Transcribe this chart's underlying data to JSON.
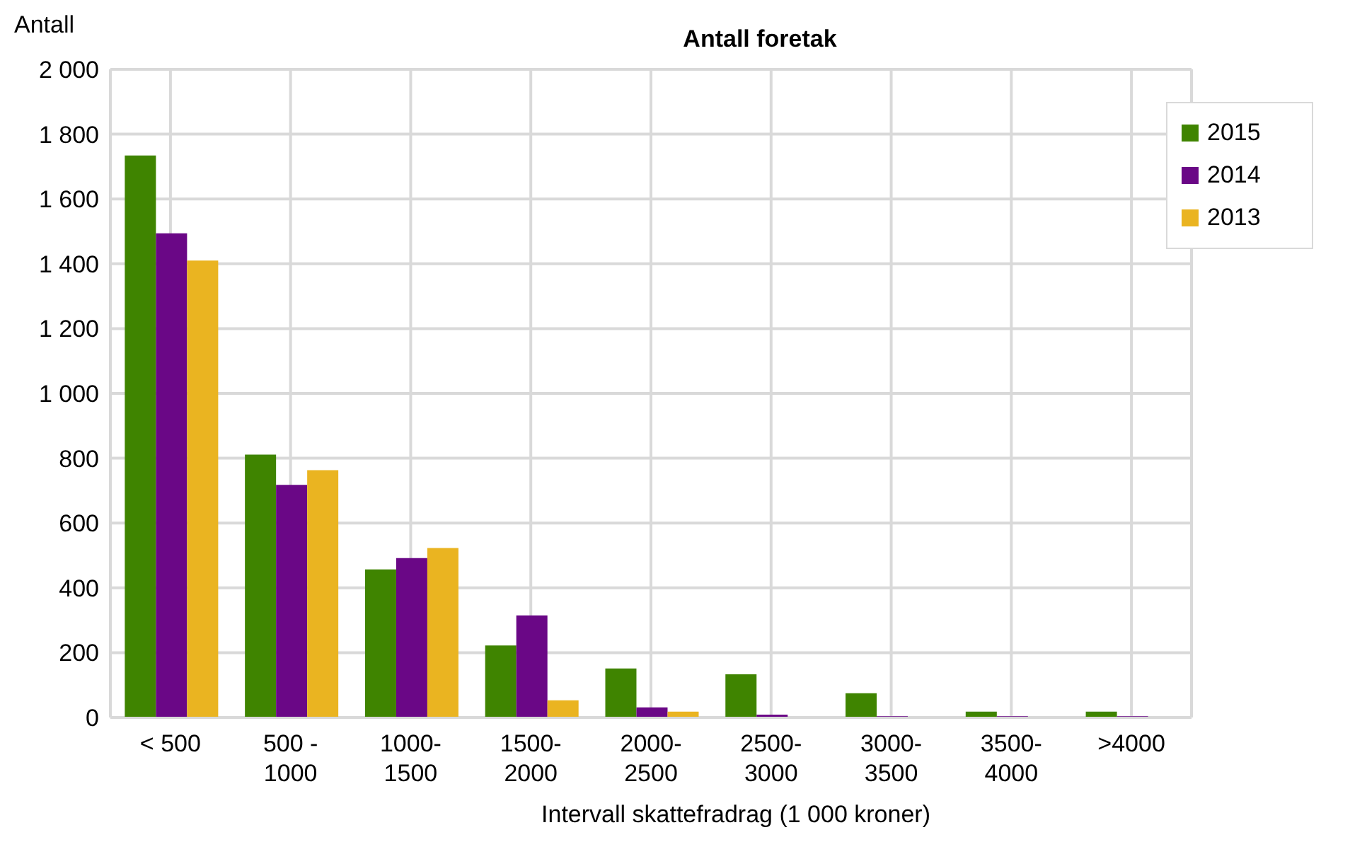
{
  "chart_data": {
    "type": "bar",
    "title": "Antall foretak",
    "ylabel": "Antall",
    "xlabel": "Intervall skattefradrag (1 000 kroner)",
    "categories": [
      "< 500",
      "500 -\n1000",
      "1000-\n1500",
      "1500-\n2000",
      "2000-\n2500",
      "2500-\n3000",
      "3000-\n3500",
      "3500-\n4000",
      ">4000"
    ],
    "series": [
      {
        "name": "2015",
        "color": "#3f8400",
        "values": [
          1734,
          811,
          457,
          222,
          151,
          133,
          75,
          18,
          18
        ]
      },
      {
        "name": "2014",
        "color": "#6a0786",
        "values": [
          1494,
          718,
          492,
          315,
          31,
          9,
          4,
          4,
          4
        ]
      },
      {
        "name": "2013",
        "color": "#eab421",
        "values": [
          1410,
          763,
          523,
          53,
          18,
          0,
          0,
          0,
          0
        ]
      }
    ],
    "ylim": [
      0,
      2000
    ],
    "yticks": [
      0,
      {
        "value": 200,
        "label": "200"
      },
      {
        "value": 400,
        "label": "400"
      },
      {
        "value": 600,
        "label": "600"
      },
      {
        "value": 800,
        "label": "800"
      },
      {
        "value": 1000,
        "label": "1 000"
      },
      {
        "value": 1200,
        "label": "1 200"
      },
      {
        "value": 1400,
        "label": "1 400"
      },
      {
        "value": 1600,
        "label": "1 600"
      },
      {
        "value": 1800,
        "label": "1 800"
      },
      {
        "value": 2000,
        "label": "2 000"
      }
    ],
    "grid": true,
    "legend": "top right"
  }
}
